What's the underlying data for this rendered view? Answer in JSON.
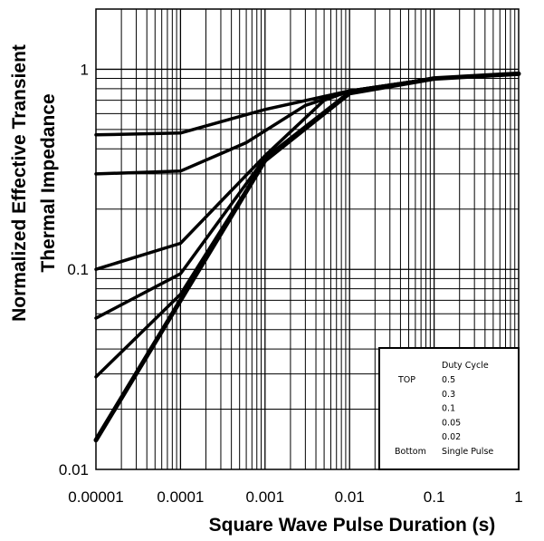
{
  "chart_data": {
    "type": "line",
    "title": "",
    "xlabel": "Square Wave Pulse Duration (s)",
    "ylabel_lines": [
      "Normalized Effective Transient",
      "Thermal Impedance"
    ],
    "x_scale": "log",
    "y_scale": "log",
    "xlim": [
      1e-05,
      1
    ],
    "ylim": [
      0.01,
      2
    ],
    "grid": true,
    "x_ticks": [
      {
        "value": 1e-05,
        "label": "0.00001"
      },
      {
        "value": 0.0001,
        "label": "0.0001"
      },
      {
        "value": 0.001,
        "label": "0.001"
      },
      {
        "value": 0.01,
        "label": "0.01"
      },
      {
        "value": 0.1,
        "label": "0.1"
      },
      {
        "value": 1,
        "label": "1"
      }
    ],
    "y_ticks": [
      {
        "value": 0.01,
        "label": "0.01"
      },
      {
        "value": 0.1,
        "label": "0.1"
      },
      {
        "value": 1,
        "label": "1"
      }
    ],
    "legend": {
      "position": "bottom-right",
      "header": "Duty Cycle",
      "rows": [
        {
          "tag": "TOP",
          "text": "0.5"
        },
        {
          "tag": "",
          "text": "0.3"
        },
        {
          "tag": "",
          "text": "0.1"
        },
        {
          "tag": "",
          "text": "0.05"
        },
        {
          "tag": "",
          "text": "0.02"
        },
        {
          "tag": "Bottom",
          "text": "Single Pulse"
        }
      ]
    },
    "series": [
      {
        "x": [
          1e-05,
          0.0001,
          0.001,
          0.01,
          0.1,
          1
        ],
        "y": [
          0.47,
          0.48,
          0.63,
          0.78,
          0.9,
          0.95
        ]
      },
      {
        "x": [
          1e-05,
          0.0001,
          0.0006,
          0.003,
          0.01,
          0.1,
          1
        ],
        "y": [
          0.3,
          0.31,
          0.43,
          0.66,
          0.78,
          0.9,
          0.95
        ]
      },
      {
        "x": [
          1e-05,
          0.0001,
          0.001,
          0.005,
          0.01,
          0.1,
          1
        ],
        "y": [
          0.1,
          0.135,
          0.37,
          0.7,
          0.78,
          0.9,
          0.95
        ]
      },
      {
        "x": [
          1e-05,
          0.0001,
          0.001,
          0.01,
          0.1,
          1
        ],
        "y": [
          0.057,
          0.095,
          0.36,
          0.77,
          0.9,
          0.95
        ]
      },
      {
        "x": [
          1e-05,
          0.0001,
          0.001,
          0.01,
          0.1,
          1
        ],
        "y": [
          0.029,
          0.075,
          0.35,
          0.76,
          0.9,
          0.95
        ]
      },
      {
        "x": [
          1e-05,
          0.0001,
          0.001,
          0.01,
          0.1,
          1
        ],
        "y": [
          0.014,
          0.07,
          0.35,
          0.76,
          0.9,
          0.95
        ]
      }
    ]
  }
}
